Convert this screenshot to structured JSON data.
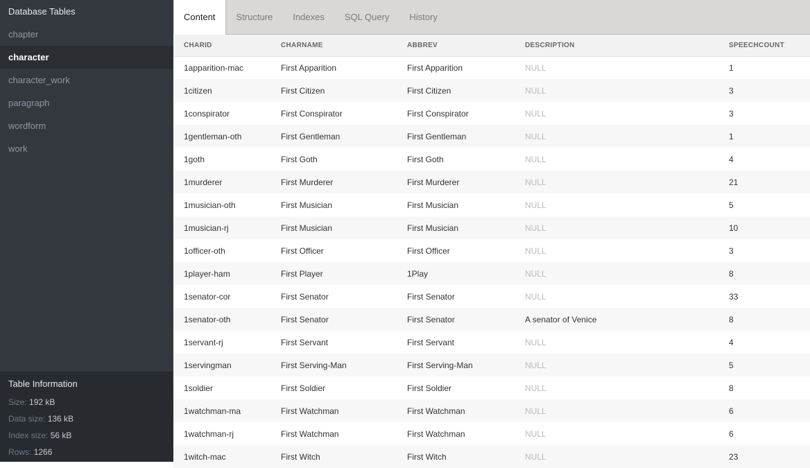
{
  "sidebar": {
    "title": "Database Tables",
    "items": [
      "chapter",
      "character",
      "character_work",
      "paragraph",
      "wordform",
      "work"
    ],
    "active": "character"
  },
  "info": {
    "title": "Table Information",
    "rows": [
      {
        "k": "Size:",
        "v": "192 kB"
      },
      {
        "k": "Data size:",
        "v": "136 kB"
      },
      {
        "k": "Index size:",
        "v": "56 kB"
      },
      {
        "k": "Rows:",
        "v": "1266"
      }
    ]
  },
  "tabs": {
    "items": [
      "Content",
      "Structure",
      "Indexes",
      "SQL Query",
      "History"
    ],
    "active": "Content"
  },
  "table": {
    "columns": [
      "CHARID",
      "CHARNAME",
      "ABBREV",
      "DESCRIPTION",
      "SPEECHCOUNT"
    ],
    "rows": [
      [
        "1apparition-mac",
        "First Apparition",
        "First Apparition",
        "NULL",
        "1"
      ],
      [
        "1citizen",
        "First Citizen",
        "First Citizen",
        "NULL",
        "3"
      ],
      [
        "1conspirator",
        "First Conspirator",
        "First Conspirator",
        "NULL",
        "3"
      ],
      [
        "1gentleman-oth",
        "First Gentleman",
        "First Gentleman",
        "NULL",
        "1"
      ],
      [
        "1goth",
        "First Goth",
        "First Goth",
        "NULL",
        "4"
      ],
      [
        "1murderer",
        "First Murderer",
        "First Murderer",
        "NULL",
        "21"
      ],
      [
        "1musician-oth",
        "First Musician",
        "First Musician",
        "NULL",
        "5"
      ],
      [
        "1musician-rj",
        "First Musician",
        "First Musician",
        "NULL",
        "10"
      ],
      [
        "1officer-oth",
        "First Officer",
        "First Officer",
        "NULL",
        "3"
      ],
      [
        "1player-ham",
        "First Player",
        "1Play",
        "NULL",
        "8"
      ],
      [
        "1senator-cor",
        "First Senator",
        "First Senator",
        "NULL",
        "33"
      ],
      [
        "1senator-oth",
        "First Senator",
        "First Senator",
        "A senator of Venice",
        "8"
      ],
      [
        "1servant-rj",
        "First Servant",
        "First Servant",
        "NULL",
        "4"
      ],
      [
        "1servingman",
        "First Serving-Man",
        "First Serving-Man",
        "NULL",
        "5"
      ],
      [
        "1soldier",
        "First Soldier",
        "First Soldier",
        "NULL",
        "8"
      ],
      [
        "1watchman-ma",
        "First Watchman",
        "First Watchman",
        "NULL",
        "6"
      ],
      [
        "1watchman-rj",
        "First Watchman",
        "First Watchman",
        "NULL",
        "6"
      ],
      [
        "1witch-mac",
        "First Witch",
        "First Witch",
        "NULL",
        "23"
      ]
    ]
  },
  "colors": {
    "sidebar": "#33373e",
    "sidebar_active": "#2a2d32",
    "info_panel": "#272b30",
    "tab_bar": "#d9d8d6",
    "null_text": "#bbbbbb"
  }
}
